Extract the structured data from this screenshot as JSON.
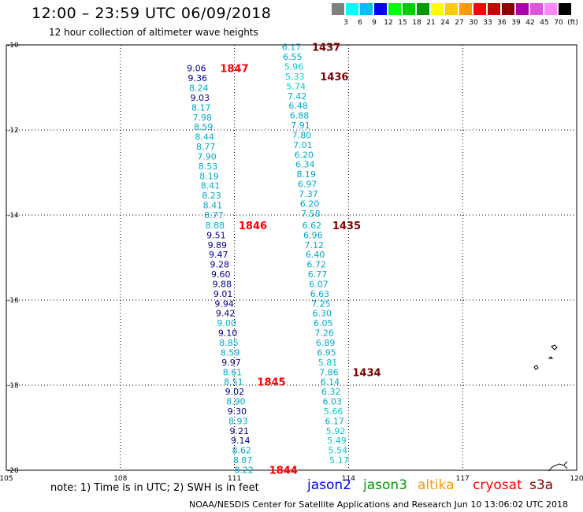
{
  "header": {
    "title": "12:00 – 23:59 UTC 06/09/2018",
    "subtitle": "12 hour collection of altimeter wave heights"
  },
  "legend": {
    "unit": "(ft)",
    "labels": [
      "3",
      "6",
      "9",
      "12",
      "15",
      "18",
      "21",
      "24",
      "27",
      "30",
      "33",
      "36",
      "39",
      "42",
      "45",
      "70"
    ],
    "colors": [
      "#808080",
      "#00ffff",
      "#00bfff",
      "#0000ff",
      "#00ff00",
      "#00cc00",
      "#009900",
      "#ffff00",
      "#ffcc00",
      "#ff9900",
      "#ff0000",
      "#cc0000",
      "#880000",
      "#aa00aa",
      "#dd55dd",
      "#ff88ff",
      "#000000"
    ]
  },
  "map": {
    "x_ticks": [
      "105",
      "108",
      "111",
      "114",
      "117",
      "120"
    ],
    "y_ticks": [
      "-10",
      "-12",
      "-14",
      "-16",
      "-18",
      "-20"
    ],
    "tracks": [
      {
        "lon": 110.0,
        "color": "#00008b",
        "label_color": "#ff0000",
        "points": [
          {
            "lat": -10.55,
            "v": "9.06",
            "c": "#00008b"
          },
          {
            "lat": -10.78,
            "v": "9.36",
            "c": "#00008b"
          },
          {
            "lat": -11.01,
            "v": "8.24",
            "c": "#00aacc"
          },
          {
            "lat": -11.24,
            "v": "9.03",
            "c": "#00008b"
          },
          {
            "lat": -11.47,
            "v": "8.17",
            "c": "#00aacc"
          },
          {
            "lat": -11.7,
            "v": "7.98",
            "c": "#00aacc"
          },
          {
            "lat": -11.93,
            "v": "8.59",
            "c": "#00aacc"
          },
          {
            "lat": -12.16,
            "v": "8.44",
            "c": "#00aacc"
          },
          {
            "lat": -12.39,
            "v": "8.77",
            "c": "#00aacc"
          },
          {
            "lat": -12.62,
            "v": "7.90",
            "c": "#00aacc"
          },
          {
            "lat": -12.85,
            "v": "8.53",
            "c": "#00aacc"
          },
          {
            "lat": -13.08,
            "v": "8.19",
            "c": "#00aacc"
          },
          {
            "lat": -13.31,
            "v": "8.41",
            "c": "#00aacc"
          },
          {
            "lat": -13.54,
            "v": "8.23",
            "c": "#00aacc"
          },
          {
            "lat": -13.77,
            "v": "8.41",
            "c": "#00aacc"
          },
          {
            "lat": -14.0,
            "v": "8.77",
            "c": "#00aacc"
          },
          {
            "lat": -14.24,
            "v": "8.88",
            "c": "#00aacc"
          },
          {
            "lat": -14.47,
            "v": "9.51",
            "c": "#00008b"
          },
          {
            "lat": -14.7,
            "v": "9.89",
            "c": "#00008b"
          },
          {
            "lat": -14.93,
            "v": "9.47",
            "c": "#00008b"
          },
          {
            "lat": -15.16,
            "v": "9.28",
            "c": "#00008b"
          },
          {
            "lat": -15.39,
            "v": "9.60",
            "c": "#00008b"
          },
          {
            "lat": -15.62,
            "v": "9.88",
            "c": "#00008b"
          },
          {
            "lat": -15.85,
            "v": "9.01",
            "c": "#00008b"
          },
          {
            "lat": -16.08,
            "v": "9.94",
            "c": "#00008b"
          },
          {
            "lat": -16.31,
            "v": "9.42",
            "c": "#00008b"
          },
          {
            "lat": -16.54,
            "v": "9.00",
            "c": "#00aacc"
          },
          {
            "lat": -16.77,
            "v": "9.10",
            "c": "#00008b"
          },
          {
            "lat": -17.0,
            "v": "8.85",
            "c": "#00aacc"
          },
          {
            "lat": -17.23,
            "v": "8.59",
            "c": "#00aacc"
          },
          {
            "lat": -17.46,
            "v": "9.97",
            "c": "#00008b"
          },
          {
            "lat": -17.69,
            "v": "8.61",
            "c": "#00aacc"
          },
          {
            "lat": -17.92,
            "v": "8.51",
            "c": "#00aacc"
          },
          {
            "lat": -18.15,
            "v": "9.02",
            "c": "#00008b"
          },
          {
            "lat": -18.38,
            "v": "8.90",
            "c": "#00aacc"
          },
          {
            "lat": -18.61,
            "v": "9.30",
            "c": "#00008b"
          },
          {
            "lat": -18.84,
            "v": "8.93",
            "c": "#00aacc"
          },
          {
            "lat": -19.07,
            "v": "9.21",
            "c": "#00008b"
          },
          {
            "lat": -19.3,
            "v": "9.14",
            "c": "#00008b"
          },
          {
            "lat": -19.53,
            "v": "8.62",
            "c": "#00aacc"
          },
          {
            "lat": -19.76,
            "v": "8.87",
            "c": "#00aacc"
          },
          {
            "lat": -19.99,
            "v": "8.22",
            "c": "#00aacc"
          }
        ],
        "times": [
          {
            "lat": -10.55,
            "t": "1847",
            "dx": 12
          },
          {
            "lat": -14.24,
            "t": "1846",
            "dx": 12
          },
          {
            "lat": -17.92,
            "t": "1845",
            "dx": 12
          },
          {
            "lat": -19.99,
            "t": "1844",
            "dx": 14
          }
        ]
      },
      {
        "lon": 112.5,
        "color": "#00aacc",
        "label_color": "#800000",
        "points": [
          {
            "lat": -10.05,
            "v": "6.17",
            "c": "#00aacc"
          },
          {
            "lat": -10.28,
            "v": "6.55",
            "c": "#00aacc"
          },
          {
            "lat": -10.51,
            "v": "5.96",
            "c": "#00cccc"
          },
          {
            "lat": -10.74,
            "v": "5.33",
            "c": "#00cccc"
          },
          {
            "lat": -10.97,
            "v": "5.74",
            "c": "#00cccc"
          },
          {
            "lat": -11.2,
            "v": "7.42",
            "c": "#00aacc"
          },
          {
            "lat": -11.43,
            "v": "6.48",
            "c": "#00aacc"
          },
          {
            "lat": -11.66,
            "v": "6.88",
            "c": "#00aacc"
          },
          {
            "lat": -11.89,
            "v": "7.91",
            "c": "#00aacc"
          },
          {
            "lat": -12.12,
            "v": "7.80",
            "c": "#00aacc"
          },
          {
            "lat": -12.35,
            "v": "7.01",
            "c": "#00aacc"
          },
          {
            "lat": -12.58,
            "v": "6.20",
            "c": "#00aacc"
          },
          {
            "lat": -12.81,
            "v": "6.34",
            "c": "#00aacc"
          },
          {
            "lat": -13.04,
            "v": "8.19",
            "c": "#00aacc"
          },
          {
            "lat": -13.27,
            "v": "6.97",
            "c": "#00aacc"
          },
          {
            "lat": -13.5,
            "v": "7.37",
            "c": "#00aacc"
          },
          {
            "lat": -13.73,
            "v": "6.20",
            "c": "#00aacc"
          },
          {
            "lat": -13.96,
            "v": "7.58",
            "c": "#00aacc"
          },
          {
            "lat": -14.24,
            "v": "6.62",
            "c": "#00aacc"
          },
          {
            "lat": -14.47,
            "v": "6.96",
            "c": "#00aacc"
          },
          {
            "lat": -14.7,
            "v": "7.12",
            "c": "#00aacc"
          },
          {
            "lat": -14.93,
            "v": "6.40",
            "c": "#00aacc"
          },
          {
            "lat": -15.16,
            "v": "6.72",
            "c": "#00aacc"
          },
          {
            "lat": -15.39,
            "v": "6.77",
            "c": "#00aacc"
          },
          {
            "lat": -15.62,
            "v": "6.07",
            "c": "#00aacc"
          },
          {
            "lat": -15.85,
            "v": "6.63",
            "c": "#00aacc"
          },
          {
            "lat": -16.08,
            "v": "7.25",
            "c": "#00aacc"
          },
          {
            "lat": -16.31,
            "v": "6.30",
            "c": "#00aacc"
          },
          {
            "lat": -16.54,
            "v": "6.05",
            "c": "#00aacc"
          },
          {
            "lat": -16.77,
            "v": "7.26",
            "c": "#00aacc"
          },
          {
            "lat": -17.0,
            "v": "6.89",
            "c": "#00aacc"
          },
          {
            "lat": -17.23,
            "v": "6.95",
            "c": "#00aacc"
          },
          {
            "lat": -17.46,
            "v": "5.81",
            "c": "#00cccc"
          },
          {
            "lat": -17.69,
            "v": "7.86",
            "c": "#00aacc"
          },
          {
            "lat": -17.92,
            "v": "6.14",
            "c": "#00aacc"
          },
          {
            "lat": -18.15,
            "v": "6.32",
            "c": "#00aacc"
          },
          {
            "lat": -18.38,
            "v": "6.03",
            "c": "#00aacc"
          },
          {
            "lat": -18.61,
            "v": "5.66",
            "c": "#00cccc"
          },
          {
            "lat": -18.84,
            "v": "6.17",
            "c": "#00aacc"
          },
          {
            "lat": -19.07,
            "v": "5.92",
            "c": "#00cccc"
          },
          {
            "lat": -19.3,
            "v": "5.49",
            "c": "#00cccc"
          },
          {
            "lat": -19.53,
            "v": "5.54",
            "c": "#00cccc"
          },
          {
            "lat": -19.76,
            "v": "5.17",
            "c": "#00cccc"
          }
        ],
        "times": [
          {
            "lat": -10.05,
            "t": "1437",
            "dx": 8
          },
          {
            "lat": -10.74,
            "t": "1436",
            "dx": 14
          },
          {
            "lat": -14.24,
            "t": "1435",
            "dx": 8
          },
          {
            "lat": -17.69,
            "t": "1434",
            "dx": 12
          }
        ]
      }
    ]
  },
  "footer": {
    "note": "note: 1) Time is in UTC; 2) SWH is in feet",
    "satellites": [
      {
        "name": "jason2",
        "color": "#0000ff"
      },
      {
        "name": "jason3",
        "color": "#009900"
      },
      {
        "name": "altika",
        "color": "#ff9900"
      },
      {
        "name": "cryosat",
        "color": "#ff0000"
      },
      {
        "name": "s3a",
        "color": "#800000"
      }
    ],
    "credit": "NOAA/NESDIS Center for Satellite Applications and Research   Jun 10 13:06:02 UTC 2018"
  }
}
